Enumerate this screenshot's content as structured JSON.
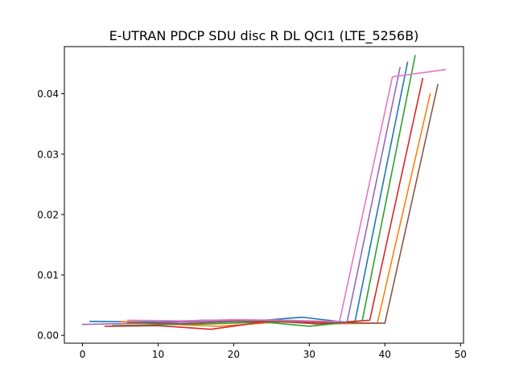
{
  "chart_data": {
    "type": "line",
    "title": "E-UTRAN PDCP SDU disc R DL QCI1 (LTE_5256B)",
    "xlabel": "",
    "ylabel": "",
    "xlim": [
      -2.4,
      50.4
    ],
    "ylim": [
      -0.0013,
      0.0478
    ],
    "xticks": [
      0,
      10,
      20,
      30,
      40,
      50
    ],
    "yticks": [
      0.0,
      0.01,
      0.02,
      0.03,
      0.04
    ],
    "ytick_labels": [
      "0.00",
      "0.01",
      "0.02",
      "0.03",
      "0.04"
    ],
    "grid": false,
    "legend": "none",
    "series": [
      {
        "color": "#1f77b4",
        "x": [
          1,
          10,
          16,
          23,
          29,
          36,
          43
        ],
        "y": [
          0.0023,
          0.0022,
          0.0025,
          0.0024,
          0.003,
          0.002,
          0.0452
        ]
      },
      {
        "color": "#ff7f0e",
        "x": [
          5,
          12,
          18,
          26,
          32,
          39,
          46
        ],
        "y": [
          0.0023,
          0.0018,
          0.0015,
          0.0022,
          0.0019,
          0.002,
          0.04
        ]
      },
      {
        "color": "#2ca02c",
        "x": [
          4,
          11,
          17,
          24,
          30,
          37,
          44
        ],
        "y": [
          0.0016,
          0.0018,
          0.0019,
          0.0022,
          0.0015,
          0.0024,
          0.0463
        ]
      },
      {
        "color": "#d62728",
        "x": [
          3,
          10,
          17,
          25,
          31,
          38,
          45
        ],
        "y": [
          0.0015,
          0.0016,
          0.001,
          0.0024,
          0.0019,
          0.0025,
          0.0425
        ]
      },
      {
        "color": "#9467bd",
        "x": [
          0,
          7,
          14,
          21,
          28,
          35,
          42
        ],
        "y": [
          0.0018,
          0.002,
          0.0022,
          0.0025,
          0.0022,
          0.0022,
          0.0443
        ]
      },
      {
        "color": "#8c564b",
        "x": [
          6,
          13,
          20,
          27,
          33,
          40,
          47
        ],
        "y": [
          0.0021,
          0.0019,
          0.0023,
          0.0023,
          0.0021,
          0.002,
          0.0415
        ]
      },
      {
        "color": "#e377c2",
        "x": [
          6,
          13,
          20,
          27,
          34,
          41,
          48
        ],
        "y": [
          0.0025,
          0.0024,
          0.0026,
          0.0025,
          0.0023,
          0.0428,
          0.044
        ]
      }
    ]
  }
}
